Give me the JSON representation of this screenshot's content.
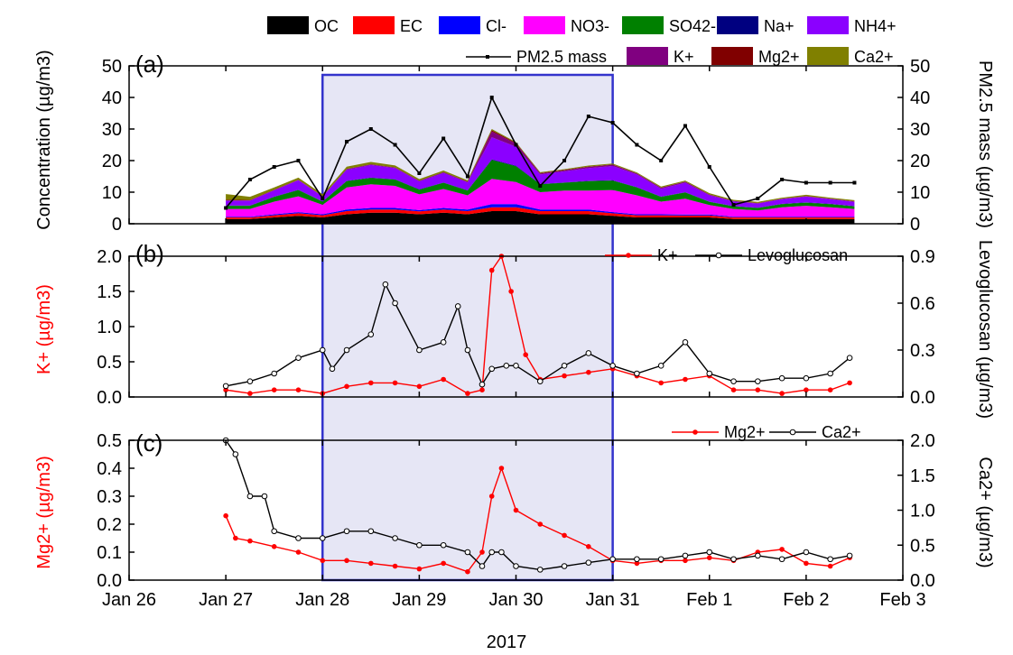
{
  "chart_data": [
    {
      "panel_label": "(a)",
      "type": "area",
      "stacked": true,
      "ylabel_left": "Concentration (µg/m3)",
      "ylabel_right": "PM2.5 mass (µg/m3)",
      "ylim": [
        0,
        50
      ],
      "yticks": [
        "0",
        "10",
        "20",
        "30",
        "40",
        "50"
      ],
      "colors": {
        "OC": "#000000",
        "EC": "#ff0000",
        "Cl": "#0000ff",
        "NO3": "#ff00ff",
        "SO4": "#008000",
        "Na": "#000080",
        "NH4": "#8b00ff",
        "K": "#800080",
        "Mg": "#800000",
        "Ca": "#808000",
        "PM25": "#000000"
      },
      "x_days": [
        27.0,
        27.25,
        27.5,
        27.75,
        28.0,
        28.25,
        28.5,
        28.75,
        29.0,
        29.25,
        29.5,
        29.75,
        30.0,
        30.25,
        30.5,
        30.75,
        31.0,
        31.25,
        31.5,
        31.75,
        32.0,
        32.25,
        32.5,
        32.75,
        33.0,
        33.25,
        33.5
      ],
      "series": [
        {
          "name": "OC",
          "values": [
            1.5,
            1.5,
            2.0,
            2.5,
            2.0,
            3.0,
            3.5,
            3.5,
            3.0,
            3.5,
            3.0,
            4.0,
            4.0,
            3.0,
            3.0,
            3.0,
            2.5,
            2.0,
            2.0,
            2.0,
            2.0,
            1.5,
            1.5,
            1.5,
            1.5,
            1.5,
            1.5
          ]
        },
        {
          "name": "EC",
          "values": [
            0.5,
            0.5,
            0.7,
            0.8,
            0.7,
            1.0,
            1.0,
            1.0,
            0.9,
            1.0,
            1.0,
            1.2,
            1.2,
            1.0,
            1.0,
            1.0,
            0.8,
            0.7,
            0.7,
            0.6,
            0.6,
            0.5,
            0.5,
            0.5,
            0.5,
            0.5,
            0.5
          ]
        },
        {
          "name": "Cl-",
          "values": [
            0.2,
            0.2,
            0.3,
            0.4,
            0.3,
            0.5,
            0.5,
            0.5,
            0.4,
            0.5,
            0.5,
            1.0,
            1.0,
            0.5,
            0.5,
            0.5,
            0.4,
            0.3,
            0.3,
            0.3,
            0.3,
            0.2,
            0.2,
            0.2,
            0.2,
            0.2,
            0.2
          ]
        },
        {
          "name": "NO3-",
          "values": [
            2.5,
            2.5,
            4.0,
            5.0,
            3.0,
            7.0,
            7.5,
            7.0,
            5.0,
            6.0,
            4.5,
            8.0,
            7.0,
            5.5,
            6.0,
            6.0,
            7.0,
            6.0,
            4.0,
            5.0,
            3.0,
            2.5,
            2.0,
            3.0,
            3.5,
            3.0,
            2.5
          ]
        },
        {
          "name": "SO42-",
          "values": [
            1.0,
            1.0,
            1.5,
            2.0,
            1.0,
            2.0,
            2.0,
            2.0,
            1.5,
            2.0,
            1.5,
            6.0,
            5.0,
            2.5,
            2.5,
            3.0,
            3.0,
            2.5,
            1.5,
            2.0,
            1.0,
            0.8,
            0.8,
            1.0,
            1.0,
            1.0,
            0.8
          ]
        },
        {
          "name": "Na+",
          "values": [
            0.1,
            0.1,
            0.1,
            0.1,
            0.1,
            0.1,
            0.1,
            0.1,
            0.1,
            0.1,
            0.1,
            0.2,
            0.2,
            0.1,
            0.1,
            0.1,
            0.1,
            0.1,
            0.1,
            0.1,
            0.1,
            0.1,
            0.1,
            0.1,
            0.1,
            0.1,
            0.1
          ]
        },
        {
          "name": "NH4+",
          "values": [
            1.5,
            1.5,
            2.0,
            3.0,
            1.5,
            3.5,
            4.0,
            3.5,
            2.5,
            3.0,
            2.5,
            7.0,
            6.0,
            3.0,
            3.5,
            4.0,
            4.5,
            4.0,
            2.5,
            3.0,
            2.0,
            1.5,
            1.3,
            1.5,
            1.8,
            1.5,
            1.3
          ]
        },
        {
          "name": "K+",
          "values": [
            0.1,
            0.1,
            0.1,
            0.1,
            0.1,
            0.2,
            0.2,
            0.2,
            0.2,
            0.2,
            0.2,
            1.8,
            1.0,
            0.3,
            0.3,
            0.4,
            0.4,
            0.3,
            0.3,
            0.3,
            0.2,
            0.1,
            0.1,
            0.1,
            0.1,
            0.1,
            0.2
          ]
        },
        {
          "name": "Mg2+",
          "values": [
            0.2,
            0.15,
            0.12,
            0.1,
            0.08,
            0.07,
            0.07,
            0.06,
            0.05,
            0.06,
            0.04,
            0.4,
            0.25,
            0.2,
            0.18,
            0.12,
            0.07,
            0.06,
            0.07,
            0.08,
            0.08,
            0.06,
            0.1,
            0.06,
            0.07,
            0.06,
            0.07
          ]
        },
        {
          "name": "Ca2+",
          "values": [
            1.8,
            1.0,
            0.7,
            0.6,
            0.6,
            0.7,
            0.7,
            0.6,
            0.5,
            0.5,
            0.4,
            0.4,
            0.2,
            0.2,
            0.2,
            0.3,
            0.3,
            0.3,
            0.3,
            0.3,
            0.4,
            0.3,
            0.3,
            0.3,
            0.4,
            0.3,
            0.3
          ]
        }
      ],
      "line_series": {
        "name": "PM2.5 mass",
        "values": [
          5.0,
          14.0,
          18.0,
          20.0,
          8.0,
          26.0,
          30.0,
          25.0,
          16.0,
          27.0,
          15.0,
          40.0,
          25.0,
          12.0,
          20.0,
          34.0,
          32.0,
          25.0,
          20.0,
          31.0,
          18.0,
          6.0,
          8.0,
          14.0,
          13.0,
          13.0,
          13.0
        ]
      },
      "legend": {
        "row1": [
          "OC",
          "EC",
          "Cl-",
          "NO3-",
          "SO42-",
          "Na+",
          "NH4+"
        ],
        "row2": [
          "PM2.5 mass",
          "K+",
          "Mg2+",
          "Ca2+"
        ]
      }
    },
    {
      "panel_label": "(b)",
      "type": "line",
      "ylabel_left": "K+ (µg/m3)",
      "ylabel_right": "Levoglucosan (µg/m3)",
      "ylim_left": [
        0,
        2.0
      ],
      "ylim_right": [
        0,
        0.9
      ],
      "yticks_left": [
        "0.0",
        "0.5",
        "1.0",
        "1.5",
        "2.0"
      ],
      "yticks_right": [
        "0.0",
        "0.3",
        "0.6",
        "0.9"
      ],
      "series": [
        {
          "name": "K+",
          "axis": "left",
          "color": "#ff0000",
          "x": [
            27.0,
            27.25,
            27.5,
            27.75,
            28.0,
            28.25,
            28.5,
            28.75,
            29.0,
            29.25,
            29.5,
            29.65,
            29.75,
            29.85,
            29.95,
            30.1,
            30.25,
            30.5,
            30.75,
            31.0,
            31.25,
            31.5,
            31.75,
            32.0,
            32.25,
            32.5,
            32.75,
            33.0,
            33.25,
            33.45
          ],
          "values": [
            0.1,
            0.05,
            0.1,
            0.1,
            0.05,
            0.15,
            0.2,
            0.2,
            0.15,
            0.25,
            0.05,
            0.1,
            1.8,
            2.0,
            1.5,
            0.6,
            0.25,
            0.3,
            0.35,
            0.4,
            0.3,
            0.2,
            0.25,
            0.3,
            0.1,
            0.1,
            0.05,
            0.1,
            0.1,
            0.2
          ]
        },
        {
          "name": "Levoglucosan",
          "axis": "right",
          "color": "#000000",
          "x": [
            27.0,
            27.25,
            27.5,
            27.75,
            28.0,
            28.1,
            28.25,
            28.5,
            28.65,
            28.75,
            29.0,
            29.25,
            29.4,
            29.5,
            29.65,
            29.75,
            29.9,
            30.0,
            30.25,
            30.5,
            30.75,
            31.0,
            31.25,
            31.5,
            31.75,
            32.0,
            32.25,
            32.5,
            32.75,
            33.0,
            33.25,
            33.45
          ],
          "values": [
            0.07,
            0.1,
            0.15,
            0.25,
            0.3,
            0.18,
            0.3,
            0.4,
            0.72,
            0.6,
            0.3,
            0.35,
            0.58,
            0.3,
            0.08,
            0.18,
            0.2,
            0.2,
            0.1,
            0.2,
            0.28,
            0.2,
            0.15,
            0.2,
            0.35,
            0.15,
            0.1,
            0.1,
            0.12,
            0.12,
            0.15,
            0.25
          ]
        }
      ]
    },
    {
      "panel_label": "(c)",
      "type": "line",
      "xlabel": "2017",
      "ylabel_left": "Mg2+ (µg/m3)",
      "ylabel_right": "Ca2+ (µg/m3)",
      "ylim_left": [
        0,
        0.5
      ],
      "ylim_right": [
        0,
        2.0
      ],
      "yticks_left": [
        "0.0",
        "0.1",
        "0.2",
        "0.3",
        "0.4",
        "0.5"
      ],
      "yticks_right": [
        "0.0",
        "0.5",
        "1.0",
        "1.5",
        "2.0"
      ],
      "series": [
        {
          "name": "Mg2+",
          "axis": "left",
          "color": "#ff0000",
          "x": [
            27.0,
            27.1,
            27.25,
            27.5,
            27.75,
            28.0,
            28.25,
            28.5,
            28.75,
            29.0,
            29.25,
            29.5,
            29.65,
            29.75,
            29.85,
            30.0,
            30.25,
            30.5,
            30.75,
            31.0,
            31.25,
            31.5,
            31.75,
            32.0,
            32.25,
            32.5,
            32.75,
            33.0,
            33.25,
            33.45
          ],
          "values": [
            0.23,
            0.15,
            0.14,
            0.12,
            0.1,
            0.07,
            0.07,
            0.06,
            0.05,
            0.04,
            0.06,
            0.03,
            0.1,
            0.3,
            0.4,
            0.25,
            0.2,
            0.16,
            0.12,
            0.07,
            0.06,
            0.07,
            0.07,
            0.08,
            0.07,
            0.1,
            0.11,
            0.06,
            0.05,
            0.08
          ]
        },
        {
          "name": "Ca2+",
          "axis": "right",
          "color": "#000000",
          "x": [
            27.0,
            27.1,
            27.25,
            27.4,
            27.5,
            27.75,
            28.0,
            28.25,
            28.5,
            28.75,
            29.0,
            29.25,
            29.5,
            29.65,
            29.75,
            29.85,
            30.0,
            30.25,
            30.5,
            30.75,
            31.0,
            31.25,
            31.5,
            31.75,
            32.0,
            32.25,
            32.5,
            32.75,
            33.0,
            33.25,
            33.45
          ],
          "values": [
            2.0,
            1.8,
            1.2,
            1.2,
            0.7,
            0.6,
            0.6,
            0.7,
            0.7,
            0.6,
            0.5,
            0.5,
            0.4,
            0.2,
            0.4,
            0.4,
            0.2,
            0.15,
            0.2,
            0.25,
            0.3,
            0.3,
            0.3,
            0.35,
            0.4,
            0.3,
            0.35,
            0.3,
            0.4,
            0.3,
            0.35
          ]
        }
      ]
    }
  ],
  "x_axis": {
    "range": [
      26,
      34
    ],
    "ticks": [
      {
        "x": 26,
        "label": "Jan 26"
      },
      {
        "x": 27,
        "label": "Jan 27"
      },
      {
        "x": 28,
        "label": "Jan 28"
      },
      {
        "x": 29,
        "label": "Jan 29"
      },
      {
        "x": 30,
        "label": "Jan 30"
      },
      {
        "x": 31,
        "label": "Jan 31"
      },
      {
        "x": 32,
        "label": "Feb 1"
      },
      {
        "x": 33,
        "label": "Feb 2"
      },
      {
        "x": 34,
        "label": "Feb 3"
      }
    ],
    "xlabel": "2017"
  },
  "highlight": {
    "x_start": 28,
    "x_end": 31,
    "fill": "#e6e6f5",
    "stroke": "#3333cc"
  }
}
